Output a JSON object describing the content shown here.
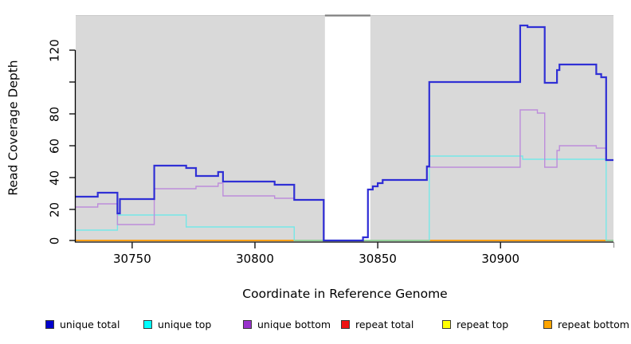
{
  "chart_data": {
    "type": "line",
    "step_mode": "after",
    "xlabel": "Coordinate in Reference Genome",
    "ylabel": "Read Coverage Depth",
    "xlim": [
      30727,
      30946
    ],
    "ylim": [
      0,
      141.5
    ],
    "x_ticks": [
      30750,
      30800,
      30850,
      30900
    ],
    "x_tick_labels": [
      "30750",
      "30800",
      "30850",
      "30900"
    ],
    "y_ticks": [
      0,
      20,
      40,
      60,
      80,
      100,
      120
    ],
    "y_tick_labels": [
      "0",
      "20",
      "40",
      "60",
      "80",
      "",
      "120"
    ],
    "panel_color": "#d9d9d9",
    "panel_top_edge_color": "#c9c9c9",
    "gap_region": {
      "x_start": 30828.5,
      "x_end": 30847,
      "fill": "#ffffff",
      "top_border_color": "#7f7f7f"
    },
    "axis_color": "#000000",
    "series": [
      {
        "name": "unique total",
        "color": "#2222d4",
        "line_width": 2.2,
        "opacity": 0.93,
        "points": [
          [
            30727,
            28
          ],
          [
            30736,
            30.5
          ],
          [
            30744,
            17.5
          ],
          [
            30745,
            26.5
          ],
          [
            30759,
            47.5
          ],
          [
            30772,
            46
          ],
          [
            30776,
            41
          ],
          [
            30785,
            43.5
          ],
          [
            30787,
            37.5
          ],
          [
            30808,
            35.5
          ],
          [
            30816,
            26
          ],
          [
            30828,
            0.5
          ],
          [
            30844,
            2.5
          ],
          [
            30846,
            32.5
          ],
          [
            30848,
            34.5
          ],
          [
            30850,
            36.5
          ],
          [
            30852,
            38.5
          ],
          [
            30870,
            47
          ],
          [
            30871,
            100
          ],
          [
            30908,
            135.5
          ],
          [
            30911,
            134.5
          ],
          [
            30918,
            99.5
          ],
          [
            30923,
            107.5
          ],
          [
            30924,
            111
          ],
          [
            30939,
            105
          ],
          [
            30941,
            103
          ],
          [
            30943,
            51
          ],
          [
            30946,
            51
          ]
        ]
      },
      {
        "name": "unique top",
        "color": "#76e7e7",
        "line_width": 1.4,
        "opacity": 1,
        "points": [
          [
            30727,
            7
          ],
          [
            30744,
            16.5
          ],
          [
            30772,
            9
          ],
          [
            30816,
            0
          ],
          [
            30871,
            53.5
          ],
          [
            30909,
            51.5
          ],
          [
            30943,
            0
          ],
          [
            30946,
            0
          ]
        ]
      },
      {
        "name": "unique bottom",
        "color": "#bd8ddb",
        "line_width": 1.4,
        "opacity": 1,
        "points": [
          [
            30727,
            21.5
          ],
          [
            30736,
            23.5
          ],
          [
            30744,
            10.5
          ],
          [
            30759,
            33
          ],
          [
            30776,
            34.5
          ],
          [
            30785,
            36.5
          ],
          [
            30787,
            28.5
          ],
          [
            30808,
            27
          ],
          [
            30816,
            26
          ],
          [
            30828,
            0.5
          ],
          [
            30844,
            2.5
          ],
          [
            30846,
            32.5
          ],
          [
            30848,
            34.5
          ],
          [
            30850,
            36.5
          ],
          [
            30852,
            38.5
          ],
          [
            30870,
            46.5
          ],
          [
            30908,
            82.5
          ],
          [
            30915,
            80.5
          ],
          [
            30918,
            46.5
          ],
          [
            30923,
            57
          ],
          [
            30924,
            60
          ],
          [
            30939,
            58.5
          ],
          [
            30943,
            51
          ],
          [
            30946,
            51
          ]
        ]
      },
      {
        "name": "repeat total",
        "color": "#dd0000",
        "line_width": 1.4,
        "opacity": 1,
        "points": [
          [
            30727,
            0
          ],
          [
            30946,
            0
          ]
        ]
      },
      {
        "name": "repeat top",
        "color": "#f0f000",
        "line_width": 1.4,
        "opacity": 1,
        "points": [
          [
            30727,
            0
          ],
          [
            30946,
            0
          ]
        ]
      },
      {
        "name": "repeat bottom",
        "color": "#ff9e14",
        "line_width": 1.7,
        "opacity": 1,
        "points": [
          [
            30727,
            0
          ],
          [
            30946,
            0
          ]
        ]
      }
    ],
    "baseline_overlays": [
      {
        "color": "#8fd19e",
        "x_start": 30816,
        "x_end": 30871,
        "y": 0
      },
      {
        "color": "#8fd19e",
        "x_start": 30943,
        "x_end": 30946,
        "y": 0
      }
    ]
  },
  "legend": {
    "items": [
      {
        "label": "unique total",
        "color": "#0000cc"
      },
      {
        "label": "unique top",
        "color": "#00ffff"
      },
      {
        "label": "unique bottom",
        "color": "#9932cc"
      },
      {
        "label": "repeat total",
        "color": "#ee1111"
      },
      {
        "label": "repeat top",
        "color": "#ffff00"
      },
      {
        "label": "repeat bottom",
        "color": "#ffa500"
      }
    ]
  }
}
